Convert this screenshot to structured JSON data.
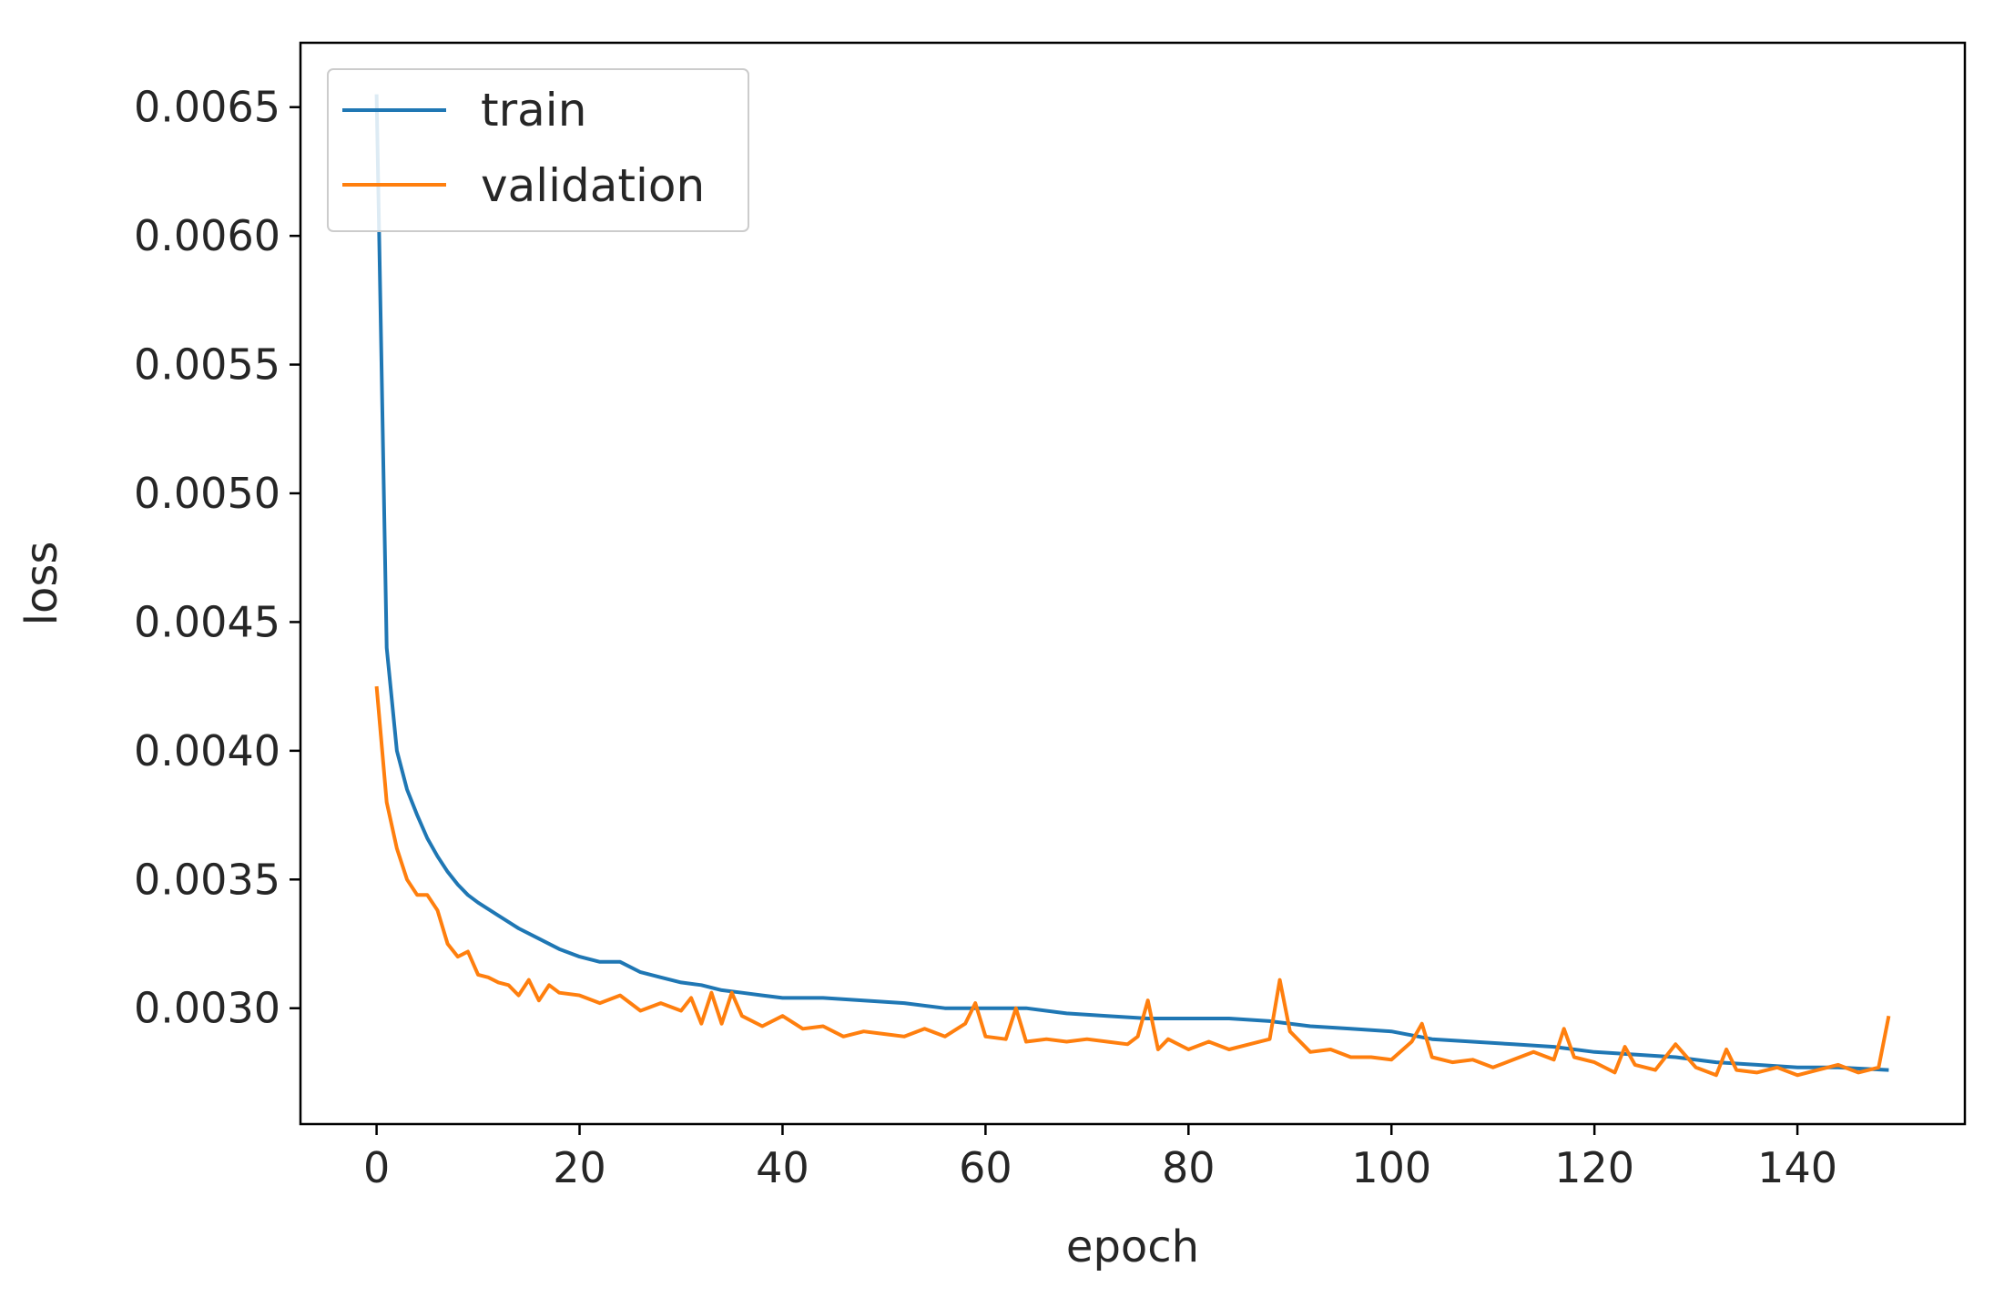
{
  "chart_data": {
    "type": "line",
    "title": "",
    "xlabel": "epoch",
    "ylabel": "loss",
    "xlim": [
      -7.5,
      156.5
    ],
    "ylim": [
      0.00255,
      0.00675
    ],
    "xticks": [
      0,
      20,
      40,
      60,
      80,
      100,
      120,
      140
    ],
    "xtick_labels": [
      "0",
      "20",
      "40",
      "60",
      "80",
      "100",
      "120",
      "140"
    ],
    "yticks": [
      0.003,
      0.0035,
      0.004,
      0.0045,
      0.005,
      0.0055,
      0.006,
      0.0065
    ],
    "ytick_labels": [
      "0.0030",
      "0.0035",
      "0.0040",
      "0.0045",
      "0.0050",
      "0.0055",
      "0.0060",
      "0.0065"
    ],
    "grid": false,
    "legend": {
      "location": "upper-left"
    },
    "series": [
      {
        "name": "train",
        "color": "#1f77b4",
        "x": [
          0,
          1,
          2,
          3,
          4,
          5,
          6,
          7,
          8,
          9,
          10,
          12,
          14,
          16,
          18,
          20,
          22,
          24,
          26,
          28,
          30,
          32,
          34,
          36,
          38,
          40,
          44,
          48,
          52,
          56,
          60,
          64,
          68,
          72,
          76,
          80,
          84,
          88,
          92,
          96,
          100,
          104,
          108,
          112,
          116,
          120,
          124,
          128,
          132,
          136,
          140,
          144,
          149
        ],
        "y": [
          0.00655,
          0.0044,
          0.004,
          0.00385,
          0.00375,
          0.00366,
          0.00359,
          0.00353,
          0.00348,
          0.00344,
          0.00341,
          0.00336,
          0.00331,
          0.00327,
          0.00323,
          0.0032,
          0.00318,
          0.00318,
          0.00314,
          0.00312,
          0.0031,
          0.00309,
          0.00307,
          0.00306,
          0.00305,
          0.00304,
          0.00304,
          0.00303,
          0.00302,
          0.003,
          0.003,
          0.003,
          0.00298,
          0.00297,
          0.00296,
          0.00296,
          0.00296,
          0.00295,
          0.00293,
          0.00292,
          0.00291,
          0.00288,
          0.00287,
          0.00286,
          0.00285,
          0.00283,
          0.00282,
          0.00281,
          0.00279,
          0.00278,
          0.00277,
          0.00277,
          0.00276
        ]
      },
      {
        "name": "validation",
        "color": "#ff7f0e",
        "x": [
          0,
          1,
          2,
          3,
          4,
          5,
          6,
          7,
          8,
          9,
          10,
          11,
          12,
          13,
          14,
          15,
          16,
          17,
          18,
          20,
          22,
          24,
          26,
          28,
          30,
          31,
          32,
          33,
          34,
          35,
          36,
          38,
          40,
          42,
          44,
          46,
          48,
          50,
          52,
          54,
          56,
          58,
          59,
          60,
          62,
          63,
          64,
          66,
          68,
          70,
          72,
          74,
          75,
          76,
          77,
          78,
          80,
          82,
          84,
          86,
          88,
          89,
          90,
          92,
          94,
          96,
          98,
          100,
          102,
          103,
          104,
          106,
          108,
          110,
          112,
          114,
          116,
          117,
          118,
          120,
          122,
          123,
          124,
          126,
          128,
          130,
          132,
          133,
          134,
          136,
          138,
          140,
          142,
          144,
          146,
          148,
          149
        ],
        "y": [
          0.00425,
          0.0038,
          0.00362,
          0.0035,
          0.00344,
          0.00344,
          0.00338,
          0.00325,
          0.0032,
          0.00322,
          0.00313,
          0.00312,
          0.0031,
          0.00309,
          0.00305,
          0.00311,
          0.00303,
          0.00309,
          0.00306,
          0.00305,
          0.00302,
          0.00305,
          0.00299,
          0.00302,
          0.00299,
          0.00304,
          0.00294,
          0.00306,
          0.00294,
          0.00306,
          0.00297,
          0.00293,
          0.00297,
          0.00292,
          0.00293,
          0.00289,
          0.00291,
          0.0029,
          0.00289,
          0.00292,
          0.00289,
          0.00294,
          0.00302,
          0.00289,
          0.00288,
          0.003,
          0.00287,
          0.00288,
          0.00287,
          0.00288,
          0.00287,
          0.00286,
          0.00289,
          0.00303,
          0.00284,
          0.00288,
          0.00284,
          0.00287,
          0.00284,
          0.00286,
          0.00288,
          0.00311,
          0.00291,
          0.00283,
          0.00284,
          0.00281,
          0.00281,
          0.0028,
          0.00287,
          0.00294,
          0.00281,
          0.00279,
          0.0028,
          0.00277,
          0.0028,
          0.00283,
          0.0028,
          0.00292,
          0.00281,
          0.00279,
          0.00275,
          0.00285,
          0.00278,
          0.00276,
          0.00286,
          0.00277,
          0.00274,
          0.00284,
          0.00276,
          0.00275,
          0.00277,
          0.00274,
          0.00276,
          0.00278,
          0.00275,
          0.00277,
          0.00297
        ]
      }
    ]
  }
}
